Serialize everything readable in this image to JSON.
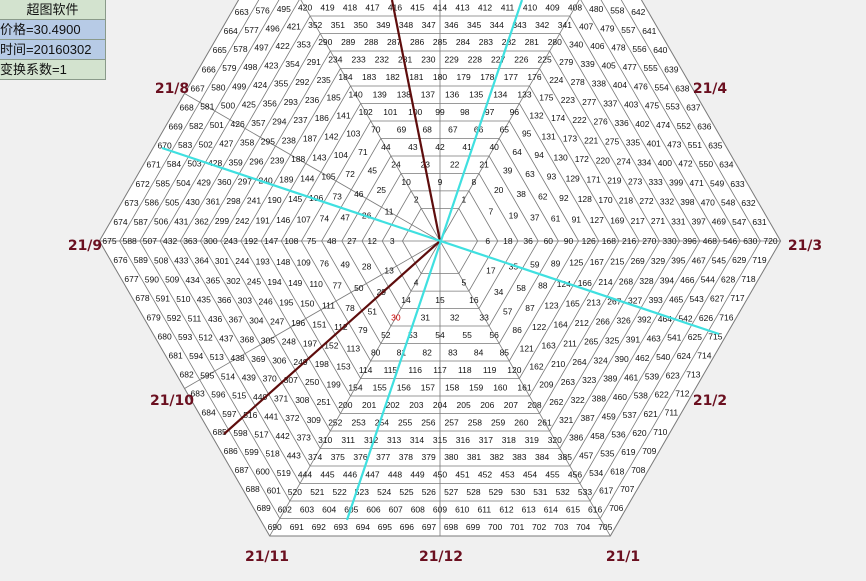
{
  "info_panel": {
    "title": "超图软件",
    "price": "价格=30.4900",
    "date": "时间=20160302",
    "factor": "变换系数=1"
  },
  "spiral": {
    "first": 1,
    "last": 720,
    "highlighted": 30
  },
  "direction_labels": [
    "21/3",
    "21/4",
    "21/8",
    "21/9",
    "21/10",
    "21/11",
    "21/12",
    "21/1",
    "21/2"
  ],
  "colors": {
    "background": "#f0f0f0",
    "grid_fill": "#ffffff",
    "grid_line": "#7a7a7a",
    "highlight": "#cc0000",
    "trend_line": "#5e0d0d",
    "cyan_line": "#3fe0e0",
    "label": "#6b1020"
  }
}
